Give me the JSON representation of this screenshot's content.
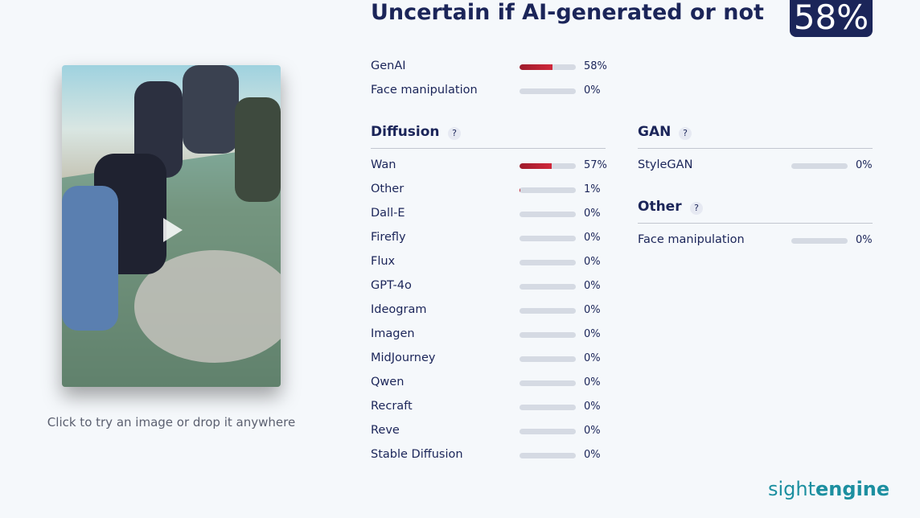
{
  "image_caption": "Click to try an image or drop it anywhere",
  "title": "Uncertain if AI-generated or not",
  "score_label": "58%",
  "summary": [
    {
      "label": "GenAI",
      "value": 58,
      "value_label": "58%"
    },
    {
      "label": "Face manipulation",
      "value": 0,
      "value_label": "0%"
    }
  ],
  "sections": [
    {
      "title": "Diffusion",
      "help": "?",
      "rows": [
        {
          "label": "Wan",
          "value": 57,
          "value_label": "57%"
        },
        {
          "label": "Other",
          "value": 1,
          "value_label": "1%"
        },
        {
          "label": "Dall-E",
          "value": 0,
          "value_label": "0%"
        },
        {
          "label": "Firefly",
          "value": 0,
          "value_label": "0%"
        },
        {
          "label": "Flux",
          "value": 0,
          "value_label": "0%"
        },
        {
          "label": "GPT-4o",
          "value": 0,
          "value_label": "0%"
        },
        {
          "label": "Ideogram",
          "value": 0,
          "value_label": "0%"
        },
        {
          "label": "Imagen",
          "value": 0,
          "value_label": "0%"
        },
        {
          "label": "MidJourney",
          "value": 0,
          "value_label": "0%"
        },
        {
          "label": "Qwen",
          "value": 0,
          "value_label": "0%"
        },
        {
          "label": "Recraft",
          "value": 0,
          "value_label": "0%"
        },
        {
          "label": "Reve",
          "value": 0,
          "value_label": "0%"
        },
        {
          "label": "Stable Diffusion",
          "value": 0,
          "value_label": "0%"
        }
      ]
    },
    {
      "title": "GAN",
      "help": "?",
      "rows": [
        {
          "label": "StyleGAN",
          "value": 0,
          "value_label": "0%"
        }
      ]
    },
    {
      "title": "Other",
      "help": "?",
      "rows": [
        {
          "label": "Face manipulation",
          "value": 0,
          "value_label": "0%"
        }
      ]
    }
  ],
  "logo": {
    "light": "sight",
    "bold": "engine"
  }
}
